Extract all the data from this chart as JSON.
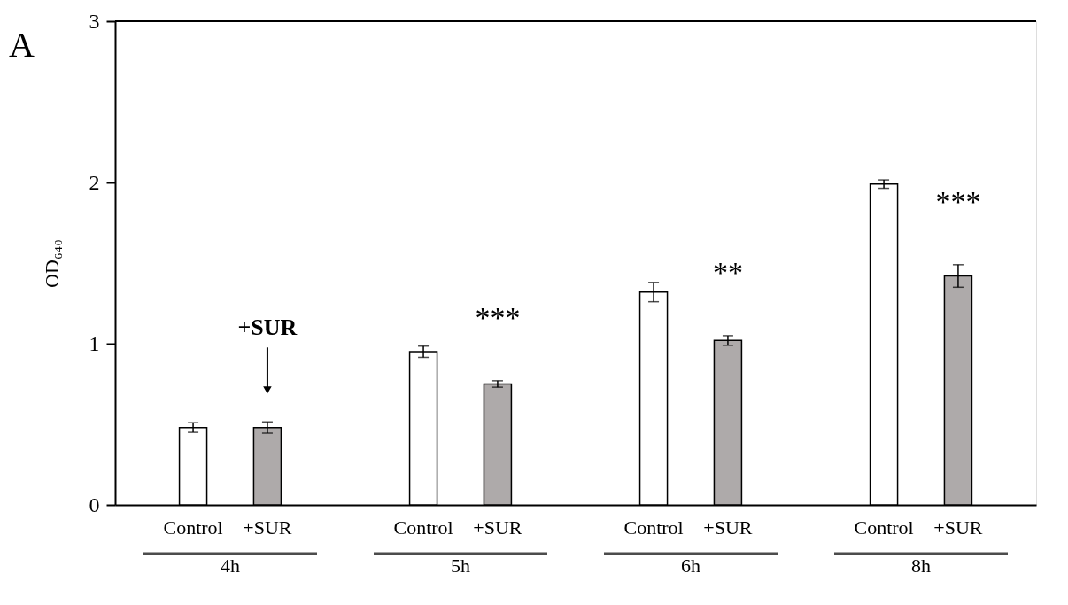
{
  "chart_data": {
    "type": "bar",
    "ylabel": "OD₆₄₀",
    "categories": [
      "4h",
      "5h",
      "6h",
      "8h"
    ],
    "series": [
      {
        "name": "Control",
        "color": "#ffffff",
        "values": [
          0.48,
          0.95,
          1.32,
          1.99
        ],
        "errors": [
          0.03,
          0.035,
          0.06,
          0.026
        ]
      },
      {
        "name": "+SUR",
        "color": "#aeaaaa",
        "values": [
          0.48,
          0.75,
          1.02,
          1.42
        ],
        "errors": [
          0.035,
          0.02,
          0.03,
          0.07
        ]
      }
    ],
    "ylim": [
      0,
      3
    ],
    "yticks": [
      0,
      1,
      2,
      3
    ],
    "grid": false,
    "annotations": [
      "A",
      "+SUR",
      "***",
      "**",
      "***"
    ]
  }
}
